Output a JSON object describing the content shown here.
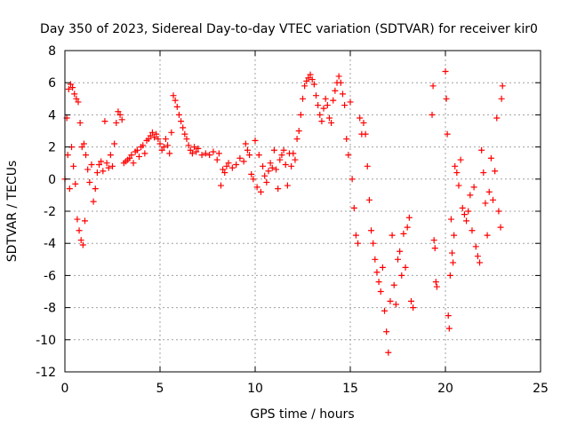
{
  "chart_data": {
    "type": "scatter",
    "title": "Day 350 of 2023, Sidereal Day-to-day VTEC variation (SDTVAR) for receiver kir0",
    "xlabel": "GPS time / hours",
    "ylabel": "SDTVAR / TECUs",
    "xlim": [
      0,
      25
    ],
    "ylim": [
      -12,
      8
    ],
    "xticks": [
      0,
      5,
      10,
      15,
      20,
      25
    ],
    "yticks": [
      -12,
      -10,
      -8,
      -6,
      -4,
      -2,
      0,
      2,
      4,
      6,
      8
    ],
    "grid": true,
    "marker": "+",
    "color": "#ff0000",
    "series": [
      {
        "name": "SDTVAR",
        "points": [
          [
            0.0,
            0.0
          ],
          [
            0.1,
            3.8
          ],
          [
            0.15,
            1.5
          ],
          [
            0.2,
            5.6
          ],
          [
            0.25,
            -0.6
          ],
          [
            0.3,
            5.9
          ],
          [
            0.35,
            2.0
          ],
          [
            0.4,
            5.7
          ],
          [
            0.45,
            0.8
          ],
          [
            0.5,
            5.3
          ],
          [
            0.55,
            -0.3
          ],
          [
            0.6,
            5.0
          ],
          [
            0.65,
            -2.5
          ],
          [
            0.7,
            4.8
          ],
          [
            0.75,
            -3.2
          ],
          [
            0.8,
            3.5
          ],
          [
            0.85,
            -3.8
          ],
          [
            0.9,
            2.0
          ],
          [
            0.95,
            -4.1
          ],
          [
            1.0,
            2.2
          ],
          [
            1.05,
            -2.6
          ],
          [
            1.1,
            1.5
          ],
          [
            1.2,
            0.6
          ],
          [
            1.3,
            -0.2
          ],
          [
            1.4,
            0.9
          ],
          [
            1.5,
            -1.4
          ],
          [
            1.6,
            -0.6
          ],
          [
            1.7,
            0.4
          ],
          [
            1.8,
            0.9
          ],
          [
            1.9,
            1.1
          ],
          [
            2.0,
            0.5
          ],
          [
            2.1,
            3.6
          ],
          [
            2.2,
            1.0
          ],
          [
            2.3,
            0.7
          ],
          [
            2.4,
            1.5
          ],
          [
            2.5,
            0.8
          ],
          [
            2.6,
            2.2
          ],
          [
            2.7,
            3.5
          ],
          [
            2.8,
            4.2
          ],
          [
            2.9,
            4.0
          ],
          [
            3.0,
            3.7
          ],
          [
            3.1,
            1.0
          ],
          [
            3.2,
            1.1
          ],
          [
            3.3,
            1.2
          ],
          [
            3.4,
            1.3
          ],
          [
            3.5,
            1.5
          ],
          [
            3.6,
            1.0
          ],
          [
            3.7,
            1.7
          ],
          [
            3.8,
            1.8
          ],
          [
            3.9,
            1.4
          ],
          [
            4.0,
            2.0
          ],
          [
            4.1,
            2.1
          ],
          [
            4.2,
            1.6
          ],
          [
            4.3,
            2.4
          ],
          [
            4.4,
            2.5
          ],
          [
            4.5,
            2.7
          ],
          [
            4.6,
            2.9
          ],
          [
            4.7,
            2.6
          ],
          [
            4.8,
            2.8
          ],
          [
            4.9,
            2.5
          ],
          [
            5.0,
            2.2
          ],
          [
            5.1,
            1.8
          ],
          [
            5.2,
            2.0
          ],
          [
            5.3,
            2.5
          ],
          [
            5.4,
            2.1
          ],
          [
            5.5,
            1.6
          ],
          [
            5.6,
            2.9
          ],
          [
            5.7,
            5.2
          ],
          [
            5.8,
            4.9
          ],
          [
            5.9,
            4.5
          ],
          [
            6.0,
            4.0
          ],
          [
            6.1,
            3.6
          ],
          [
            6.2,
            3.2
          ],
          [
            6.3,
            2.8
          ],
          [
            6.4,
            2.5
          ],
          [
            6.5,
            2.1
          ],
          [
            6.6,
            1.8
          ],
          [
            6.7,
            1.6
          ],
          [
            6.8,
            2.0
          ],
          [
            6.9,
            1.7
          ],
          [
            7.0,
            1.9
          ],
          [
            7.2,
            1.5
          ],
          [
            7.4,
            1.6
          ],
          [
            7.6,
            1.5
          ],
          [
            7.8,
            1.7
          ],
          [
            8.0,
            1.2
          ],
          [
            8.1,
            1.6
          ],
          [
            8.2,
            -0.4
          ],
          [
            8.3,
            0.6
          ],
          [
            8.4,
            0.4
          ],
          [
            8.5,
            0.8
          ],
          [
            8.6,
            1.0
          ],
          [
            8.8,
            0.7
          ],
          [
            9.0,
            0.9
          ],
          [
            9.2,
            1.3
          ],
          [
            9.4,
            1.1
          ],
          [
            9.5,
            2.2
          ],
          [
            9.6,
            1.8
          ],
          [
            9.7,
            1.5
          ],
          [
            9.8,
            0.3
          ],
          [
            9.9,
            0.0
          ],
          [
            10.0,
            2.4
          ],
          [
            10.1,
            -0.5
          ],
          [
            10.2,
            1.5
          ],
          [
            10.3,
            -0.8
          ],
          [
            10.4,
            0.8
          ],
          [
            10.5,
            0.2
          ],
          [
            10.6,
            -0.2
          ],
          [
            10.7,
            0.5
          ],
          [
            10.8,
            1.0
          ],
          [
            10.9,
            0.7
          ],
          [
            11.0,
            1.8
          ],
          [
            11.1,
            0.6
          ],
          [
            11.2,
            -0.6
          ],
          [
            11.3,
            1.2
          ],
          [
            11.4,
            1.5
          ],
          [
            11.5,
            1.8
          ],
          [
            11.6,
            0.9
          ],
          [
            11.7,
            -0.4
          ],
          [
            11.8,
            1.6
          ],
          [
            11.9,
            0.8
          ],
          [
            12.0,
            1.6
          ],
          [
            12.1,
            1.2
          ],
          [
            12.2,
            2.5
          ],
          [
            12.3,
            3.0
          ],
          [
            12.4,
            4.0
          ],
          [
            12.5,
            5.0
          ],
          [
            12.6,
            5.8
          ],
          [
            12.7,
            6.1
          ],
          [
            12.8,
            6.3
          ],
          [
            12.9,
            6.5
          ],
          [
            13.0,
            6.2
          ],
          [
            13.1,
            5.9
          ],
          [
            13.2,
            5.2
          ],
          [
            13.3,
            4.6
          ],
          [
            13.4,
            4.0
          ],
          [
            13.5,
            3.6
          ],
          [
            13.6,
            4.4
          ],
          [
            13.7,
            5.0
          ],
          [
            13.8,
            4.6
          ],
          [
            13.9,
            3.8
          ],
          [
            14.0,
            3.5
          ],
          [
            14.1,
            4.9
          ],
          [
            14.2,
            5.5
          ],
          [
            14.3,
            6.0
          ],
          [
            14.4,
            6.4
          ],
          [
            14.5,
            6.0
          ],
          [
            14.6,
            5.3
          ],
          [
            14.7,
            4.6
          ],
          [
            14.8,
            2.5
          ],
          [
            14.9,
            1.5
          ],
          [
            15.0,
            4.8
          ],
          [
            15.1,
            0.0
          ],
          [
            15.2,
            -1.8
          ],
          [
            15.3,
            -3.5
          ],
          [
            15.4,
            -4.0
          ],
          [
            15.5,
            3.8
          ],
          [
            15.6,
            2.8
          ],
          [
            15.7,
            3.5
          ],
          [
            15.8,
            2.8
          ],
          [
            15.9,
            0.8
          ],
          [
            16.0,
            -1.3
          ],
          [
            16.1,
            -3.2
          ],
          [
            16.2,
            -4.0
          ],
          [
            16.3,
            -5.0
          ],
          [
            16.4,
            -5.8
          ],
          [
            16.5,
            -6.4
          ],
          [
            16.6,
            -7.0
          ],
          [
            16.7,
            -5.5
          ],
          [
            16.8,
            -8.2
          ],
          [
            16.9,
            -9.5
          ],
          [
            17.0,
            -10.8
          ],
          [
            17.1,
            -7.6
          ],
          [
            17.2,
            -3.5
          ],
          [
            17.3,
            -6.6
          ],
          [
            17.4,
            -7.8
          ],
          [
            17.5,
            -5.0
          ],
          [
            17.6,
            -4.5
          ],
          [
            17.7,
            -6.0
          ],
          [
            17.8,
            -3.4
          ],
          [
            17.9,
            -5.5
          ],
          [
            18.0,
            -3.0
          ],
          [
            18.1,
            -2.4
          ],
          [
            18.2,
            -7.6
          ],
          [
            18.3,
            -8.0
          ],
          [
            19.3,
            4.0
          ],
          [
            19.35,
            5.8
          ],
          [
            19.4,
            -3.8
          ],
          [
            19.45,
            -4.3
          ],
          [
            19.5,
            -6.4
          ],
          [
            19.55,
            -6.7
          ],
          [
            20.0,
            6.7
          ],
          [
            20.05,
            5.0
          ],
          [
            20.1,
            2.8
          ],
          [
            20.15,
            -8.5
          ],
          [
            20.2,
            -9.3
          ],
          [
            20.25,
            -6.0
          ],
          [
            20.3,
            -2.5
          ],
          [
            20.35,
            -4.6
          ],
          [
            20.4,
            -5.2
          ],
          [
            20.45,
            -3.5
          ],
          [
            20.5,
            0.8
          ],
          [
            20.6,
            0.4
          ],
          [
            20.7,
            -0.4
          ],
          [
            20.8,
            1.2
          ],
          [
            20.9,
            -1.8
          ],
          [
            21.0,
            -2.2
          ],
          [
            21.1,
            -2.6
          ],
          [
            21.2,
            -2.0
          ],
          [
            21.3,
            -1.0
          ],
          [
            21.4,
            -3.2
          ],
          [
            21.5,
            -0.5
          ],
          [
            21.6,
            -4.2
          ],
          [
            21.7,
            -4.8
          ],
          [
            21.8,
            -5.2
          ],
          [
            21.9,
            1.8
          ],
          [
            22.0,
            0.4
          ],
          [
            22.1,
            -1.5
          ],
          [
            22.2,
            -3.5
          ],
          [
            22.3,
            -0.8
          ],
          [
            22.4,
            1.3
          ],
          [
            22.5,
            -1.3
          ],
          [
            22.6,
            0.5
          ],
          [
            22.7,
            3.8
          ],
          [
            22.8,
            -2.0
          ],
          [
            22.9,
            -3.0
          ],
          [
            22.95,
            5.0
          ],
          [
            23.0,
            5.8
          ]
        ]
      }
    ]
  }
}
